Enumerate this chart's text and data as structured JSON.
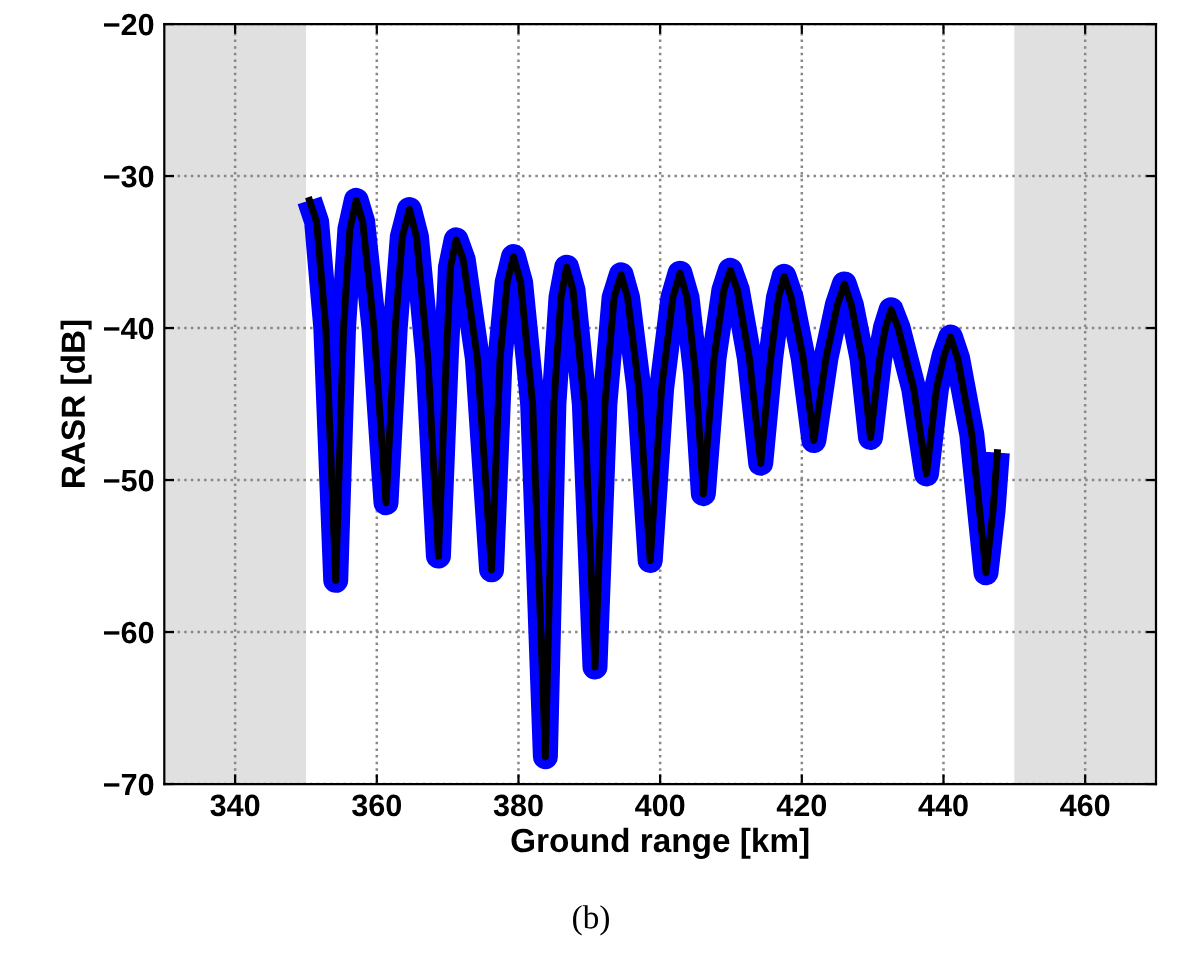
{
  "chart_data": {
    "type": "line",
    "xlabel": "Ground range [km]",
    "ylabel": "RASR [dB]",
    "annotations": [
      "(b)"
    ],
    "xlim": [
      330,
      470
    ],
    "xticks": [
      340,
      360,
      380,
      400,
      420,
      440,
      460
    ],
    "ylim": [
      -70,
      -20
    ],
    "yticks": [
      -70,
      -60,
      -50,
      -40,
      -30,
      -20
    ],
    "grid": true,
    "line_style": "solid",
    "marker": "none",
    "bands": [
      {
        "axis": "x",
        "from": 330,
        "to": 350,
        "color": "#e0e0e0"
      },
      {
        "axis": "x",
        "from": 450,
        "to": 470,
        "color": "#e0e0e0"
      }
    ],
    "series": [
      {
        "color": "#0000ff",
        "x": [
          350.5,
          351.5,
          352.8,
          354.2,
          355.3,
          356.2,
          357.1,
          358.0,
          359.6,
          361.3,
          362.6,
          363.6,
          364.6,
          365.6,
          367.2,
          368.7,
          369.8,
          370.4,
          371.2,
          372.2,
          374.2,
          376.2,
          377.4,
          378.4,
          379.3,
          380.3,
          382.0,
          383.8,
          385.0,
          386.0,
          386.8,
          387.7,
          389.3,
          390.8,
          392.2,
          393.5,
          394.5,
          395.4,
          397.0,
          398.6,
          400.2,
          401.8,
          402.8,
          403.8,
          405.0,
          406.1,
          407.6,
          409.0,
          409.9,
          410.9,
          412.6,
          414.2,
          415.6,
          416.7,
          417.5,
          418.5,
          420.2,
          421.7,
          423.4,
          425.0,
          426.0,
          427.0,
          428.5,
          429.7,
          431.0,
          431.8,
          432.6,
          433.6,
          435.8,
          437.6,
          439.0,
          440.1,
          441.0,
          442.0,
          444.0,
          446.0,
          447.0,
          447.6
        ],
        "values": [
          -31.6,
          -33,
          -40,
          -56.6,
          -40,
          -33.5,
          -31.6,
          -33,
          -40,
          -51.5,
          -40,
          -34,
          -32.2,
          -34,
          -42,
          -55.0,
          -42,
          -36,
          -34.2,
          -35.5,
          -42,
          -55.9,
          -42,
          -37,
          -35.3,
          -37,
          -45,
          -68.2,
          -45,
          -38,
          -36.0,
          -37.5,
          -45,
          -62.3,
          -45,
          -38,
          -36.5,
          -38,
          -44,
          -55.3,
          -44,
          -38,
          -36.4,
          -38,
          -43,
          -50.9,
          -42,
          -37.5,
          -36.2,
          -37.5,
          -42,
          -48.9,
          -42,
          -38,
          -36.6,
          -38,
          -42,
          -47.4,
          -42,
          -38.5,
          -37.1,
          -38.5,
          -42,
          -47.2,
          -42,
          -40,
          -38.8,
          -40,
          -44,
          -49.6,
          -44,
          -41.8,
          -40.6,
          -42,
          -47,
          -56.1,
          -52,
          -48.2
        ]
      }
    ]
  }
}
